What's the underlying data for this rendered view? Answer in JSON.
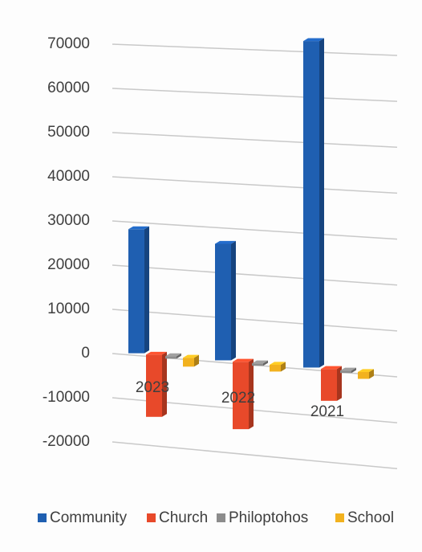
{
  "chart_data": {
    "type": "bar",
    "title": "",
    "xlabel": "",
    "ylabel": "",
    "categories": [
      "2023",
      "2022",
      "2021"
    ],
    "series": [
      {
        "name": "Community",
        "values": [
          28000,
          26000,
          72000
        ],
        "color": "#1f5fb1"
      },
      {
        "name": "Church",
        "values": [
          -14000,
          -15000,
          -7000
        ],
        "color": "#e8492a"
      },
      {
        "name": "Philoptohos",
        "values": [
          -300,
          -300,
          -300
        ],
        "color": "#8c8c8c"
      },
      {
        "name": "School",
        "values": [
          -2000,
          -1500,
          -1500
        ],
        "color": "#f2b21f"
      }
    ],
    "ylim": [
      -20000,
      70000
    ],
    "yticks": [
      "70000",
      "60000",
      "50000",
      "40000",
      "30000",
      "20000",
      "10000",
      "0",
      "-10000",
      "-20000"
    ],
    "ytick_values": [
      70000,
      60000,
      50000,
      40000,
      30000,
      20000,
      10000,
      0,
      -10000,
      -20000
    ],
    "grid": true,
    "legend_position": "bottom",
    "style": "3d-perspective"
  }
}
